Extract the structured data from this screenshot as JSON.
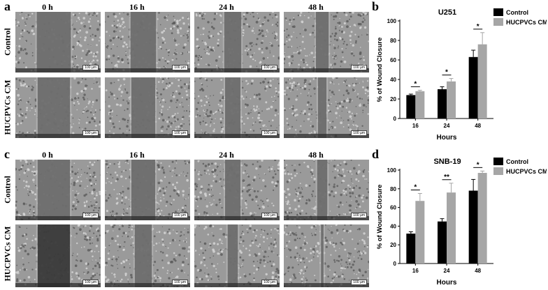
{
  "panels": {
    "a": {
      "label": "a"
    },
    "b": {
      "label": "b"
    },
    "c": {
      "label": "c"
    },
    "d": {
      "label": "d"
    }
  },
  "time_labels": [
    "0 h",
    "16 h",
    "24 h",
    "48 h"
  ],
  "row_labels": {
    "control": "Control",
    "treated": "HUCPVCs CM"
  },
  "scale_bar_text": "100 µm",
  "micrograph_rows": [
    {
      "panel": "a",
      "row": "control",
      "gap_fraction": [
        0.4,
        0.3,
        0.2,
        0.15
      ]
    },
    {
      "panel": "a",
      "row": "treated",
      "gap_fraction": [
        0.38,
        0.28,
        0.18,
        0.1
      ]
    },
    {
      "panel": "c",
      "row": "control",
      "gap_fraction": [
        0.38,
        0.28,
        0.18,
        0.12
      ]
    },
    {
      "panel": "c",
      "row": "treated",
      "gap_fraction": [
        0.38,
        0.2,
        0.12,
        0.03
      ]
    }
  ],
  "chart_data": [
    {
      "panel": "b",
      "type": "bar",
      "title": "U251",
      "xlabel": "Hours",
      "ylabel": "% of Wound Closure",
      "categories": [
        "16",
        "24",
        "48"
      ],
      "ylim": [
        0,
        100
      ],
      "yticks": [
        0,
        20,
        40,
        60,
        80,
        100
      ],
      "series": [
        {
          "name": "Control",
          "color": "#000000",
          "values": [
            24,
            30,
            63
          ],
          "errors": [
            1,
            2.5,
            7
          ]
        },
        {
          "name": "HUCPVCs CM",
          "color": "#a6a6a6",
          "values": [
            28,
            38,
            76
          ],
          "errors": [
            1,
            3,
            12
          ]
        }
      ],
      "significance": [
        "*",
        "*",
        "*"
      ],
      "legend": "top-right"
    },
    {
      "panel": "d",
      "type": "bar",
      "title": "SNB-19",
      "xlabel": "Hours",
      "ylabel": "% of Wound Closure",
      "categories": [
        "16",
        "24",
        "48"
      ],
      "ylim": [
        0,
        100
      ],
      "yticks": [
        0,
        20,
        40,
        60,
        80,
        100
      ],
      "series": [
        {
          "name": "Control",
          "color": "#000000",
          "values": [
            32,
            45,
            78
          ],
          "errors": [
            2,
            3,
            12
          ]
        },
        {
          "name": "HUCPVCs CM",
          "color": "#a6a6a6",
          "values": [
            67,
            76,
            97
          ],
          "errors": [
            8,
            10,
            2
          ]
        }
      ],
      "significance": [
        "*",
        "**",
        "*"
      ],
      "legend": "top-right"
    }
  ]
}
